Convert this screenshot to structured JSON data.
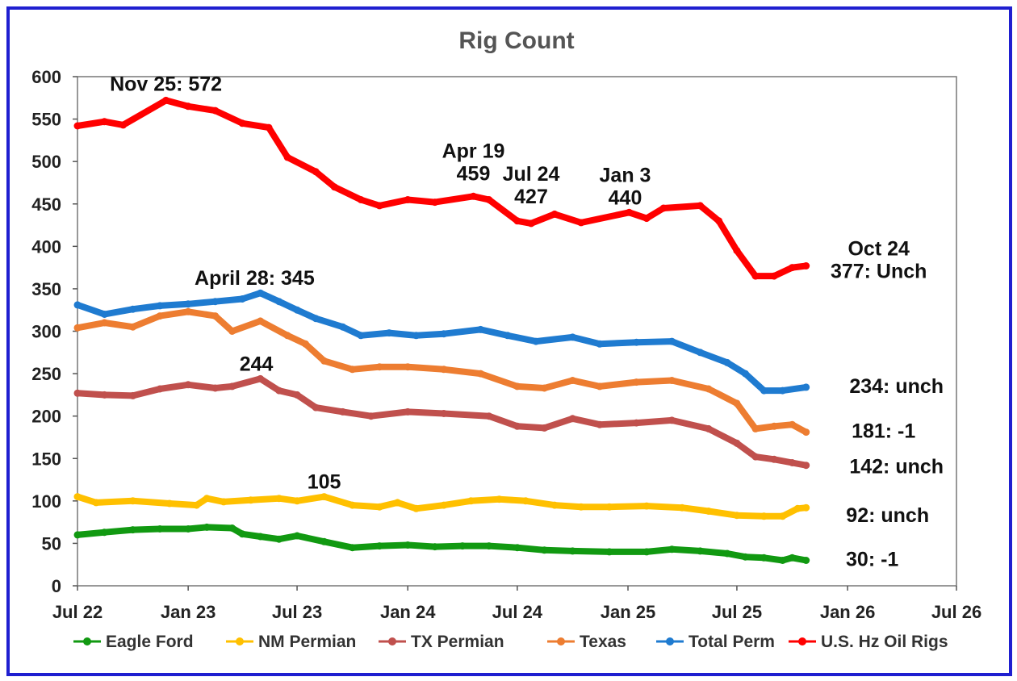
{
  "chart_data": {
    "type": "line",
    "title": "Rig Count",
    "xlabel": "",
    "ylabel": "",
    "ylim": [
      0,
      600
    ],
    "y_ticks": [
      "0",
      "50",
      "100",
      "150",
      "200",
      "250",
      "300",
      "350",
      "400",
      "450",
      "500",
      "550",
      "600"
    ],
    "x_range": [
      "2022-07-01",
      "2026-07-01"
    ],
    "x_ticks": [
      {
        "date": "2022-07-01",
        "label": "Jul 22"
      },
      {
        "date": "2023-01-01",
        "label": "Jan 23"
      },
      {
        "date": "2023-07-01",
        "label": "Jul 23"
      },
      {
        "date": "2024-01-01",
        "label": "Jan 24"
      },
      {
        "date": "2024-07-01",
        "label": "Jul 24"
      },
      {
        "date": "2025-01-01",
        "label": "Jan 25"
      },
      {
        "date": "2025-07-01",
        "label": "Jul 25"
      },
      {
        "date": "2026-01-01",
        "label": "Jan 26"
      },
      {
        "date": "2026-07-01",
        "label": "Jul 26"
      }
    ],
    "grid": false,
    "legend_position": "bottom",
    "series": [
      {
        "name": "Eagle Ford",
        "color": "#119911",
        "points": [
          [
            "2022-07-01",
            60
          ],
          [
            "2022-08-15",
            63
          ],
          [
            "2022-10-01",
            66
          ],
          [
            "2022-11-15",
            67
          ],
          [
            "2023-01-01",
            67
          ],
          [
            "2023-02-01",
            69
          ],
          [
            "2023-03-15",
            68
          ],
          [
            "2023-04-01",
            61
          ],
          [
            "2023-05-01",
            58
          ],
          [
            "2023-06-01",
            55
          ],
          [
            "2023-07-01",
            59
          ],
          [
            "2023-08-15",
            52
          ],
          [
            "2023-10-01",
            45
          ],
          [
            "2023-11-15",
            47
          ],
          [
            "2024-01-01",
            48
          ],
          [
            "2024-02-15",
            46
          ],
          [
            "2024-04-01",
            47
          ],
          [
            "2024-05-15",
            47
          ],
          [
            "2024-07-01",
            45
          ],
          [
            "2024-08-15",
            42
          ],
          [
            "2024-10-01",
            41
          ],
          [
            "2024-12-01",
            40
          ],
          [
            "2025-02-01",
            40
          ],
          [
            "2025-03-15",
            43
          ],
          [
            "2025-05-01",
            41
          ],
          [
            "2025-06-15",
            38
          ],
          [
            "2025-07-15",
            34
          ],
          [
            "2025-08-15",
            33
          ],
          [
            "2025-09-15",
            30
          ],
          [
            "2025-10-01",
            33
          ],
          [
            "2025-10-24",
            30
          ]
        ]
      },
      {
        "name": "NM Permian",
        "color": "#ffc000",
        "points": [
          [
            "2022-07-01",
            105
          ],
          [
            "2022-08-01",
            98
          ],
          [
            "2022-10-01",
            100
          ],
          [
            "2022-12-01",
            97
          ],
          [
            "2023-01-15",
            95
          ],
          [
            "2023-02-01",
            103
          ],
          [
            "2023-03-01",
            99
          ],
          [
            "2023-04-15",
            101
          ],
          [
            "2023-06-01",
            103
          ],
          [
            "2023-07-01",
            100
          ],
          [
            "2023-08-15",
            105
          ],
          [
            "2023-10-01",
            95
          ],
          [
            "2023-11-15",
            93
          ],
          [
            "2023-12-15",
            98
          ],
          [
            "2024-01-15",
            91
          ],
          [
            "2024-03-01",
            95
          ],
          [
            "2024-04-15",
            100
          ],
          [
            "2024-06-01",
            102
          ],
          [
            "2024-07-15",
            100
          ],
          [
            "2024-09-01",
            95
          ],
          [
            "2024-10-15",
            93
          ],
          [
            "2024-12-01",
            93
          ],
          [
            "2025-02-01",
            94
          ],
          [
            "2025-04-01",
            92
          ],
          [
            "2025-05-15",
            88
          ],
          [
            "2025-07-01",
            83
          ],
          [
            "2025-08-15",
            82
          ],
          [
            "2025-09-15",
            82
          ],
          [
            "2025-10-10",
            91
          ],
          [
            "2025-10-24",
            92
          ]
        ]
      },
      {
        "name": "TX Permian",
        "color": "#c0504d",
        "points": [
          [
            "2022-07-01",
            227
          ],
          [
            "2022-08-15",
            225
          ],
          [
            "2022-10-01",
            224
          ],
          [
            "2022-11-15",
            232
          ],
          [
            "2023-01-01",
            237
          ],
          [
            "2023-02-15",
            233
          ],
          [
            "2023-03-15",
            235
          ],
          [
            "2023-05-01",
            244
          ],
          [
            "2023-06-01",
            230
          ],
          [
            "2023-07-01",
            225
          ],
          [
            "2023-08-01",
            210
          ],
          [
            "2023-09-15",
            205
          ],
          [
            "2023-11-01",
            200
          ],
          [
            "2024-01-01",
            205
          ],
          [
            "2024-03-01",
            203
          ],
          [
            "2024-05-15",
            200
          ],
          [
            "2024-07-01",
            188
          ],
          [
            "2024-08-15",
            186
          ],
          [
            "2024-10-01",
            197
          ],
          [
            "2024-11-15",
            190
          ],
          [
            "2025-01-15",
            192
          ],
          [
            "2025-03-15",
            195
          ],
          [
            "2025-05-15",
            185
          ],
          [
            "2025-07-01",
            168
          ],
          [
            "2025-08-01",
            152
          ],
          [
            "2025-09-01",
            149
          ],
          [
            "2025-10-01",
            145
          ],
          [
            "2025-10-24",
            142
          ]
        ]
      },
      {
        "name": "Texas",
        "color": "#ed7d31",
        "points": [
          [
            "2022-07-01",
            304
          ],
          [
            "2022-08-15",
            310
          ],
          [
            "2022-10-01",
            305
          ],
          [
            "2022-11-15",
            318
          ],
          [
            "2023-01-01",
            323
          ],
          [
            "2023-02-15",
            318
          ],
          [
            "2023-03-15",
            300
          ],
          [
            "2023-05-01",
            312
          ],
          [
            "2023-06-15",
            295
          ],
          [
            "2023-07-15",
            285
          ],
          [
            "2023-08-15",
            265
          ],
          [
            "2023-10-01",
            255
          ],
          [
            "2023-11-15",
            258
          ],
          [
            "2024-01-01",
            258
          ],
          [
            "2024-03-01",
            255
          ],
          [
            "2024-05-01",
            250
          ],
          [
            "2024-07-01",
            235
          ],
          [
            "2024-08-15",
            233
          ],
          [
            "2024-10-01",
            242
          ],
          [
            "2024-11-15",
            235
          ],
          [
            "2025-01-15",
            240
          ],
          [
            "2025-03-15",
            242
          ],
          [
            "2025-05-15",
            232
          ],
          [
            "2025-07-01",
            215
          ],
          [
            "2025-08-01",
            185
          ],
          [
            "2025-09-01",
            188
          ],
          [
            "2025-10-01",
            190
          ],
          [
            "2025-10-24",
            181
          ]
        ]
      },
      {
        "name": "Total Perm",
        "color": "#1f7bd0",
        "points": [
          [
            "2022-07-01",
            331
          ],
          [
            "2022-08-15",
            320
          ],
          [
            "2022-10-01",
            326
          ],
          [
            "2022-11-15",
            330
          ],
          [
            "2023-01-01",
            332
          ],
          [
            "2023-02-15",
            335
          ],
          [
            "2023-04-01",
            338
          ],
          [
            "2023-05-01",
            345
          ],
          [
            "2023-06-01",
            335
          ],
          [
            "2023-07-01",
            325
          ],
          [
            "2023-08-01",
            315
          ],
          [
            "2023-09-15",
            305
          ],
          [
            "2023-10-15",
            295
          ],
          [
            "2023-12-01",
            298
          ],
          [
            "2024-01-15",
            295
          ],
          [
            "2024-03-01",
            297
          ],
          [
            "2024-05-01",
            302
          ],
          [
            "2024-06-15",
            295
          ],
          [
            "2024-08-01",
            288
          ],
          [
            "2024-10-01",
            293
          ],
          [
            "2024-11-15",
            285
          ],
          [
            "2025-01-15",
            287
          ],
          [
            "2025-03-15",
            288
          ],
          [
            "2025-05-01",
            275
          ],
          [
            "2025-06-15",
            263
          ],
          [
            "2025-07-15",
            250
          ],
          [
            "2025-08-15",
            230
          ],
          [
            "2025-09-15",
            230
          ],
          [
            "2025-10-24",
            234
          ]
        ]
      },
      {
        "name": "U.S. Hz Oil Rigs",
        "color": "#ff0000",
        "points": [
          [
            "2022-07-01",
            542
          ],
          [
            "2022-08-15",
            547
          ],
          [
            "2022-09-15",
            543
          ],
          [
            "2022-11-25",
            572
          ],
          [
            "2023-01-01",
            565
          ],
          [
            "2023-02-15",
            560
          ],
          [
            "2023-04-01",
            545
          ],
          [
            "2023-05-15",
            540
          ],
          [
            "2023-06-15",
            505
          ],
          [
            "2023-08-01",
            488
          ],
          [
            "2023-09-01",
            470
          ],
          [
            "2023-10-15",
            455
          ],
          [
            "2023-11-15",
            448
          ],
          [
            "2024-01-01",
            455
          ],
          [
            "2024-02-15",
            452
          ],
          [
            "2024-04-19",
            459
          ],
          [
            "2024-05-15",
            455
          ],
          [
            "2024-07-01",
            430
          ],
          [
            "2024-07-24",
            427
          ],
          [
            "2024-09-01",
            438
          ],
          [
            "2024-10-15",
            428
          ],
          [
            "2025-01-03",
            440
          ],
          [
            "2025-02-01",
            433
          ],
          [
            "2025-03-01",
            445
          ],
          [
            "2025-05-01",
            448
          ],
          [
            "2025-06-01",
            430
          ],
          [
            "2025-07-01",
            395
          ],
          [
            "2025-08-01",
            365
          ],
          [
            "2025-09-01",
            365
          ],
          [
            "2025-10-01",
            375
          ],
          [
            "2025-10-24",
            377
          ]
        ]
      }
    ],
    "annotations": [
      {
        "lines": [
          "Nov 25: 572"
        ],
        "date": "2022-11-25",
        "value": 572
      },
      {
        "lines": [
          "April 28: 345"
        ],
        "date": "2023-04-28",
        "value": 345
      },
      {
        "lines": [
          "244"
        ],
        "date": "2023-05-01",
        "value": 244
      },
      {
        "lines": [
          "105"
        ],
        "date": "2023-08-15",
        "value": 105
      },
      {
        "lines": [
          "Apr 19",
          "459"
        ],
        "date": "2024-04-19",
        "value": 459
      },
      {
        "lines": [
          "Jul 24",
          "427"
        ],
        "date": "2024-07-24",
        "value": 427
      },
      {
        "lines": [
          "Jan 3",
          "440"
        ],
        "date": "2025-01-03",
        "value": 440
      },
      {
        "lines": [
          "Oct 24",
          "377: Unch"
        ],
        "date": "2025-10-24",
        "value": 377
      },
      {
        "lines": [
          "234: unch"
        ],
        "date": "2025-10-24",
        "value": 234
      },
      {
        "lines": [
          "181: -1"
        ],
        "date": "2025-10-24",
        "value": 181
      },
      {
        "lines": [
          "142: unch"
        ],
        "date": "2025-10-24",
        "value": 142
      },
      {
        "lines": [
          "92: unch"
        ],
        "date": "2025-10-24",
        "value": 92
      },
      {
        "lines": [
          "30: -1"
        ],
        "date": "2025-10-24",
        "value": 30
      }
    ]
  }
}
